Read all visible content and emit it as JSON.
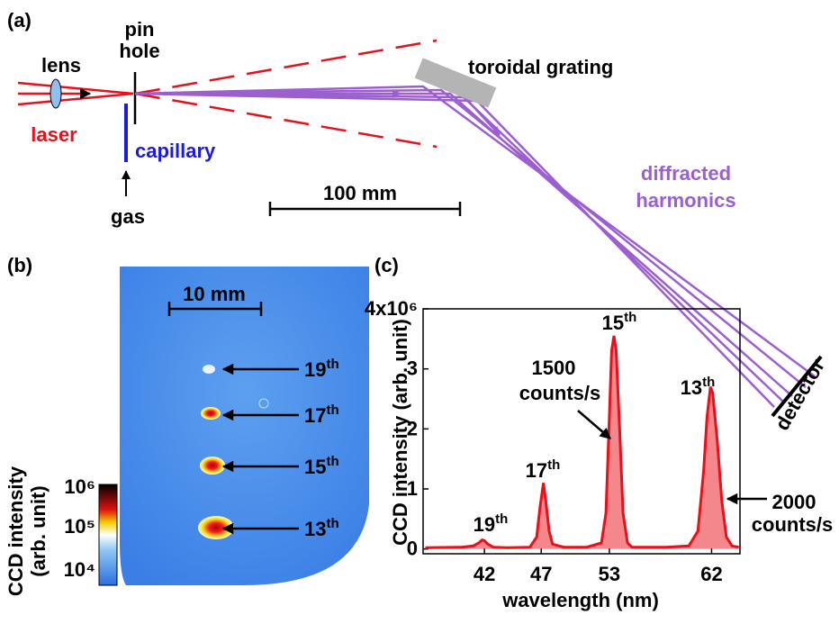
{
  "panel_a": {
    "label": "(a)",
    "lens": "lens",
    "laser": "laser",
    "pinhole": [
      "pin",
      "hole"
    ],
    "capillary": "capillary",
    "gas": "gas",
    "grating": "toroidal grating",
    "scale": "100 mm",
    "diffracted": [
      "diffracted",
      "harmonics"
    ],
    "detector": "detector"
  },
  "panel_b": {
    "label": "(b)",
    "scale": "10 mm",
    "harmonics": [
      {
        "n": "19",
        "suffix": "th"
      },
      {
        "n": "17",
        "suffix": "th"
      },
      {
        "n": "15",
        "suffix": "th"
      },
      {
        "n": "13",
        "suffix": "th"
      }
    ],
    "colorbar": {
      "title": [
        "CCD intensity",
        "(arb. unit)"
      ],
      "ticks": [
        "10⁶",
        "10⁵",
        "10⁴"
      ]
    }
  },
  "chart_data": {
    "type": "area",
    "label": "(c)",
    "x_label": "wavelength (nm)",
    "y_label": "CCD intensity (arb. unit)",
    "color": "#e8101a",
    "x": [
      36.8,
      40,
      41,
      41.5,
      41.8,
      42,
      42.3,
      42.8,
      44,
      46,
      46.6,
      46.9,
      47.2,
      47.4,
      47.7,
      48,
      49,
      51,
      52.3,
      52.7,
      53,
      53.2,
      53.4,
      53.6,
      53.9,
      54.2,
      54.6,
      55,
      58,
      60,
      60.8,
      61.3,
      61.6,
      61.9,
      62.1,
      62.5,
      62.9,
      63.3,
      63.8,
      64.4
    ],
    "values": [
      0.02,
      0.03,
      0.05,
      0.1,
      0.15,
      0.14,
      0.08,
      0.03,
      0.02,
      0.03,
      0.2,
      0.7,
      1.1,
      0.8,
      0.3,
      0.08,
      0.03,
      0.03,
      0.1,
      0.6,
      2.2,
      3.3,
      3.55,
      3.3,
      2.0,
      0.6,
      0.1,
      0.03,
      0.03,
      0.05,
      0.3,
      1.3,
      2.2,
      2.7,
      2.6,
      1.8,
      0.8,
      0.2,
      0.05,
      0.03
    ],
    "xlim": [
      36.6,
      64.5
    ],
    "ylim": [
      -0.08,
      4.0
    ],
    "xticks": [
      42,
      47,
      53,
      62
    ],
    "yticks": [
      0,
      1,
      2,
      3,
      {
        "value": 4,
        "label": "4x10⁶"
      }
    ],
    "peak_labels": [
      {
        "n": "19",
        "suffix": "th"
      },
      {
        "n": "17",
        "suffix": "th"
      },
      {
        "n": "15",
        "suffix": "th"
      },
      {
        "n": "13",
        "suffix": "th"
      }
    ],
    "annotations": [
      [
        "1500",
        "counts/s"
      ],
      [
        "2000",
        "counts/s"
      ]
    ]
  }
}
